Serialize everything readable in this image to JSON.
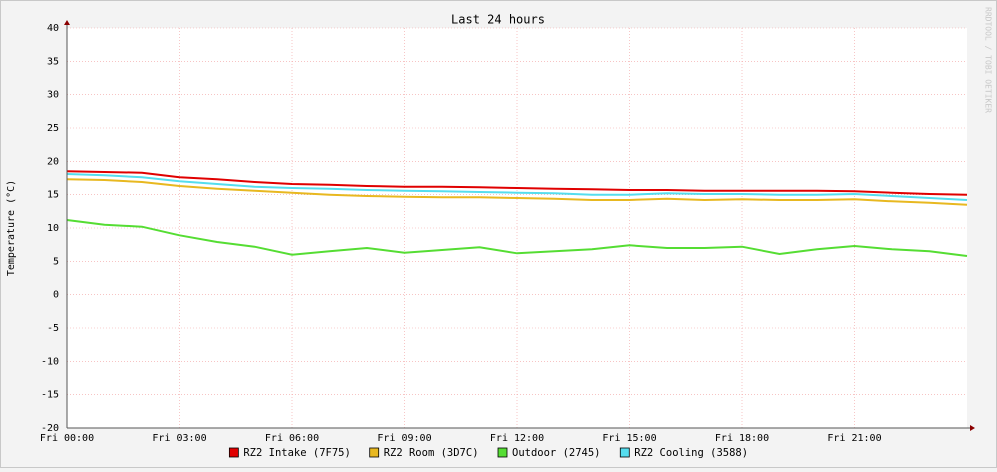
{
  "chart_data": {
    "type": "line",
    "title": "Last 24 hours",
    "y_label": "Temperature (°C)",
    "watermark": "RRDTOOL / TOBI OETIKER",
    "x": [
      0,
      1,
      2,
      3,
      4,
      5,
      6,
      7,
      8,
      9,
      10,
      11,
      12,
      13,
      14,
      15,
      16,
      17,
      18,
      19,
      20,
      21,
      22,
      23,
      24
    ],
    "xlim": [
      0,
      24
    ],
    "xticks": [
      {
        "value": 0,
        "label": "Fri 00:00"
      },
      {
        "value": 3,
        "label": "Fri 03:00"
      },
      {
        "value": 6,
        "label": "Fri 06:00"
      },
      {
        "value": 9,
        "label": "Fri 09:00"
      },
      {
        "value": 12,
        "label": "Fri 12:00"
      },
      {
        "value": 15,
        "label": "Fri 15:00"
      },
      {
        "value": 18,
        "label": "Fri 18:00"
      },
      {
        "value": 21,
        "label": "Fri 21:00"
      }
    ],
    "ylim": [
      -20,
      40
    ],
    "yticks": [
      -20,
      -15,
      -10,
      -5,
      0,
      5,
      10,
      15,
      20,
      25,
      30,
      35,
      40
    ],
    "grid": true,
    "legend": "bottom",
    "series": [
      {
        "name": "RZ2 Intake (7F75)",
        "color": "#e00000",
        "values": [
          18.5,
          18.4,
          18.3,
          17.6,
          17.3,
          16.9,
          16.6,
          16.5,
          16.3,
          16.2,
          16.2,
          16.1,
          16.0,
          15.9,
          15.8,
          15.7,
          15.7,
          15.6,
          15.6,
          15.6,
          15.6,
          15.5,
          15.3,
          15.1,
          15.0
        ]
      },
      {
        "name": "RZ2 Room (3D7C)",
        "color": "#e8b820",
        "values": [
          17.3,
          17.2,
          16.9,
          16.3,
          15.9,
          15.6,
          15.3,
          15.0,
          14.8,
          14.7,
          14.6,
          14.6,
          14.5,
          14.4,
          14.2,
          14.2,
          14.4,
          14.2,
          14.3,
          14.2,
          14.2,
          14.3,
          14.0,
          13.8,
          13.5
        ]
      },
      {
        "name": "Outdoor (2745)",
        "color": "#55dd33",
        "values": [
          11.2,
          10.5,
          10.2,
          8.9,
          7.9,
          7.2,
          6.0,
          6.5,
          7.0,
          6.3,
          6.7,
          7.1,
          6.2,
          6.5,
          6.8,
          7.4,
          7.0,
          7.0,
          7.2,
          6.1,
          6.8,
          7.3,
          6.8,
          6.5,
          5.8
        ]
      },
      {
        "name": "RZ2 Cooling (3588)",
        "color": "#55ddee",
        "values": [
          18.1,
          17.9,
          17.6,
          17.0,
          16.6,
          16.2,
          16.0,
          15.9,
          15.7,
          15.6,
          15.5,
          15.4,
          15.3,
          15.2,
          15.0,
          15.0,
          15.2,
          15.1,
          15.1,
          15.0,
          15.0,
          15.1,
          14.8,
          14.5,
          14.2
        ]
      }
    ]
  }
}
